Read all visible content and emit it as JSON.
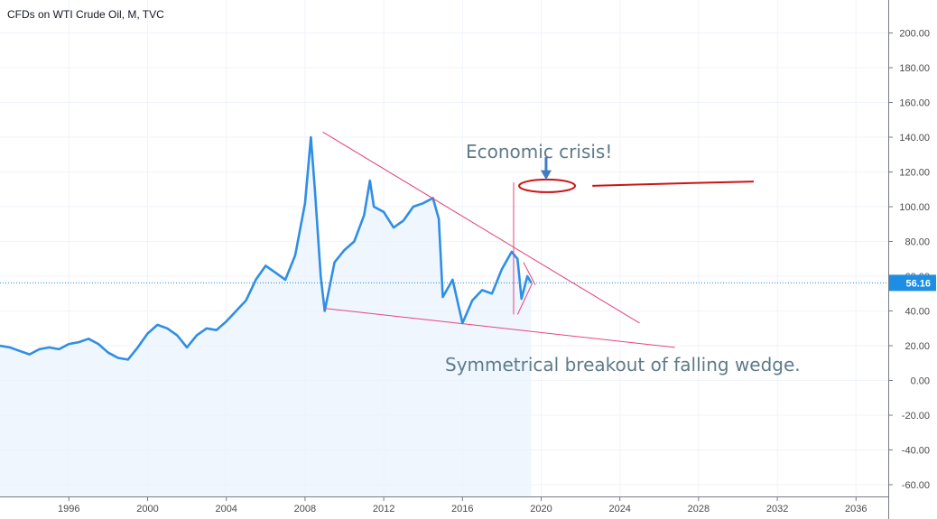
{
  "header": {
    "title": "CFDs on WTI Crude Oil, M, TVC"
  },
  "chart_data": {
    "type": "line",
    "title": "CFDs on WTI Crude Oil, M, TVC",
    "x_tick_labels": [
      "1996",
      "2000",
      "2004",
      "2008",
      "2012",
      "2016",
      "2020",
      "2024",
      "2028",
      "2032",
      "2036"
    ],
    "y_tick_labels": [
      "200.00",
      "180.00",
      "160.00",
      "140.00",
      "120.00",
      "100.00",
      "80.00",
      "60.00",
      "40.00",
      "20.00",
      "0.00",
      "-20.00",
      "-40.00",
      "-60.00"
    ],
    "xlim": [
      1992.5,
      2038
    ],
    "ylim": [
      -66,
      212
    ],
    "last_price": 56.16,
    "last_price_label": "56.16",
    "grid": true,
    "series": [
      {
        "x": [
          1992.5,
          1993,
          1993.5,
          1994,
          1994.5,
          1995,
          1995.5,
          1996,
          1996.5,
          1997,
          1997.5,
          1998,
          1998.5,
          1999,
          1999.5,
          2000,
          2000.5,
          2001,
          2001.5,
          2002,
          2002.5,
          2003,
          2003.5,
          2004,
          2004.5,
          2005,
          2005.5,
          2006,
          2006.5,
          2007,
          2007.5,
          2008,
          2008.3,
          2008.5,
          2008.8,
          2009,
          2009.5,
          2010,
          2010.5,
          2011,
          2011.3,
          2011.5,
          2012,
          2012.5,
          2013,
          2013.5,
          2014,
          2014.5,
          2014.8,
          2015,
          2015.5,
          2016,
          2016.5,
          2017,
          2017.5,
          2018,
          2018.5,
          2018.8,
          2019,
          2019.3,
          2019.5
        ],
        "values": [
          20,
          19,
          17,
          15,
          18,
          19,
          18,
          21,
          22,
          24,
          21,
          16,
          13,
          12,
          19,
          27,
          32,
          30,
          26,
          19,
          26,
          30,
          29,
          34,
          40,
          46,
          58,
          66,
          62,
          58,
          72,
          102,
          140,
          110,
          60,
          40,
          68,
          75,
          80,
          95,
          115,
          100,
          97,
          88,
          92,
          100,
          102,
          105,
          93,
          48,
          58,
          33,
          46,
          52,
          50,
          64,
          74,
          70,
          47,
          60,
          56.16
        ]
      }
    ],
    "annotations": [
      {
        "text": "Economic crisis!"
      },
      {
        "text": "Symmetrical breakout of falling wedge."
      }
    ],
    "colors": {
      "price_line": "#2f8ee5",
      "area_fill": "#eaf3fd",
      "trendline": "#e8437e",
      "marker": "#cc1414",
      "arrow": "#3f7cc4",
      "price_tag": "#1e8ee5",
      "annotation_text": "#5d7b8a"
    }
  }
}
